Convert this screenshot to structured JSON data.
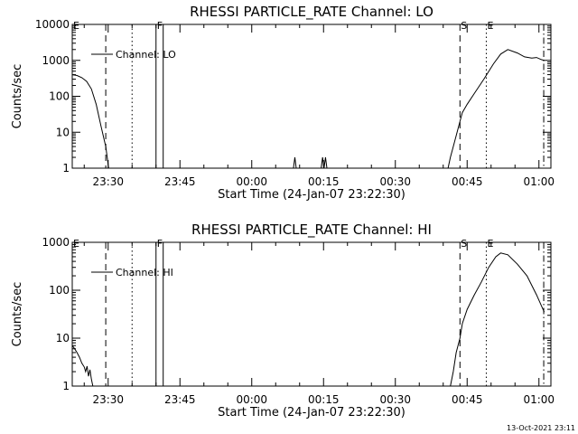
{
  "chart_data": [
    {
      "type": "line",
      "title": "RHESSI PARTICLE_RATE Channel: LO",
      "xlabel": "Start Time (24-Jan-07 23:22:30)",
      "ylabel": "Counts/sec",
      "y_scale": "log",
      "ylim": [
        1,
        10000
      ],
      "y_ticks": [
        "1",
        "10",
        "100",
        "1000",
        "10000"
      ],
      "xlim_minutes": [
        0,
        100
      ],
      "x_ticks": [
        {
          "min": 7.5,
          "label": "23:30"
        },
        {
          "min": 22.5,
          "label": "23:45"
        },
        {
          "min": 37.5,
          "label": "00:00"
        },
        {
          "min": 52.5,
          "label": "00:15"
        },
        {
          "min": 67.5,
          "label": "00:30"
        },
        {
          "min": 82.5,
          "label": "00:45"
        },
        {
          "min": 97.5,
          "label": "01:00"
        }
      ],
      "legend": {
        "entry": "Channel: LO",
        "position": "top-left"
      },
      "markers": [
        {
          "label": "E",
          "min": 0,
          "style": "dashed"
        },
        {
          "label": "",
          "min": 7,
          "style": "dashed"
        },
        {
          "label": "",
          "min": 12.5,
          "style": "dotted"
        },
        {
          "label": "F",
          "min": 17.5,
          "style": "solid"
        },
        {
          "label": "",
          "min": 19,
          "style": "solid"
        },
        {
          "label": "S",
          "min": 81,
          "style": "dashed"
        },
        {
          "label": "E",
          "min": 86.5,
          "style": "dotted"
        },
        {
          "label": "",
          "min": 98.5,
          "style": "dashdot"
        }
      ],
      "series": [
        {
          "segments": [
            [
              [
                0,
                400
              ],
              [
                1,
                380
              ],
              [
                2,
                330
              ],
              [
                3,
                260
              ],
              [
                4,
                160
              ],
              [
                5,
                60
              ],
              [
                6,
                15
              ],
              [
                7,
                4
              ],
              [
                7.6,
                1
              ]
            ],
            [
              [
                46.2,
                1
              ],
              [
                46.5,
                2
              ],
              [
                46.8,
                1
              ]
            ],
            [
              [
                52,
                1
              ],
              [
                52.3,
                2
              ],
              [
                52.6,
                1
              ],
              [
                52.9,
                2
              ],
              [
                53.2,
                1
              ]
            ],
            [
              [
                78.5,
                1
              ],
              [
                79,
                2
              ],
              [
                79.6,
                4
              ],
              [
                80.2,
                8
              ],
              [
                81,
                20
              ],
              [
                81.5,
                35
              ],
              [
                82.5,
                60
              ],
              [
                84,
                120
              ],
              [
                86,
                300
              ],
              [
                88,
                800
              ],
              [
                89.5,
                1500
              ],
              [
                91,
                2000
              ],
              [
                93,
                1600
              ],
              [
                94.5,
                1250
              ],
              [
                96,
                1150
              ],
              [
                97,
                1200
              ],
              [
                98,
                1050
              ],
              [
                98.6,
                1000
              ]
            ]
          ]
        }
      ]
    },
    {
      "type": "line",
      "title": "RHESSI PARTICLE_RATE Channel: HI",
      "xlabel": "Start Time (24-Jan-07 23:22:30)",
      "ylabel": "Counts/sec",
      "y_scale": "log",
      "ylim": [
        1,
        1000
      ],
      "y_ticks": [
        "1",
        "10",
        "100",
        "1000"
      ],
      "xlim_minutes": [
        0,
        100
      ],
      "x_ticks": [
        {
          "min": 7.5,
          "label": "23:30"
        },
        {
          "min": 22.5,
          "label": "23:45"
        },
        {
          "min": 37.5,
          "label": "00:00"
        },
        {
          "min": 52.5,
          "label": "00:15"
        },
        {
          "min": 67.5,
          "label": "00:30"
        },
        {
          "min": 82.5,
          "label": "00:45"
        },
        {
          "min": 97.5,
          "label": "01:00"
        }
      ],
      "legend": {
        "entry": "Channel: HI",
        "position": "top-left"
      },
      "markers": [
        {
          "label": "E",
          "min": 0,
          "style": "dashed"
        },
        {
          "label": "",
          "min": 7,
          "style": "dashed"
        },
        {
          "label": "",
          "min": 12.5,
          "style": "dotted"
        },
        {
          "label": "F",
          "min": 17.5,
          "style": "solid"
        },
        {
          "label": "",
          "min": 19,
          "style": "solid"
        },
        {
          "label": "S",
          "min": 81,
          "style": "dashed"
        },
        {
          "label": "E",
          "min": 86.5,
          "style": "dotted"
        },
        {
          "label": "",
          "min": 98.5,
          "style": "dashdot"
        }
      ],
      "series": [
        {
          "segments": [
            [
              [
                0,
                7
              ],
              [
                0.5,
                6
              ],
              [
                1,
                5
              ],
              [
                1.5,
                4
              ],
              [
                2,
                3
              ],
              [
                2.5,
                2.5
              ],
              [
                2.8,
                2
              ],
              [
                3.1,
                2.6
              ],
              [
                3.4,
                1.6
              ],
              [
                3.7,
                2.2
              ],
              [
                4,
                1.4
              ],
              [
                4.3,
                1
              ]
            ],
            [
              [
                79,
                1
              ],
              [
                79.6,
                2
              ],
              [
                80.2,
                5
              ],
              [
                81,
                10
              ],
              [
                81.5,
                20
              ],
              [
                82.5,
                40
              ],
              [
                84,
                80
              ],
              [
                85.5,
                150
              ],
              [
                87,
                300
              ],
              [
                88.5,
                500
              ],
              [
                89.5,
                600
              ],
              [
                91,
                550
              ],
              [
                93,
                350
              ],
              [
                95,
                200
              ],
              [
                97,
                80
              ],
              [
                98.6,
                35
              ]
            ]
          ]
        }
      ]
    }
  ],
  "timestamp": "13-Oct-2021 23:11",
  "colors": {
    "background": "#ffffff",
    "foreground": "#000000"
  }
}
